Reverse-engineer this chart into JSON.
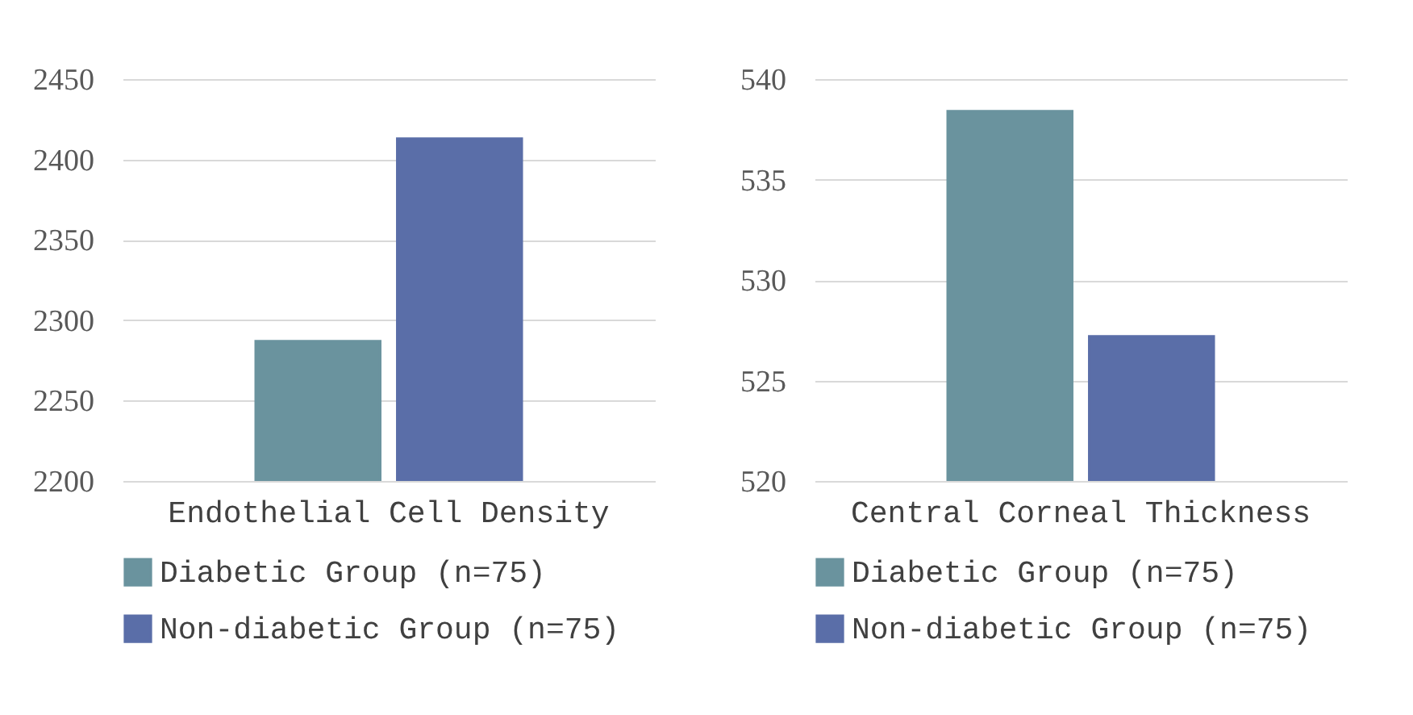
{
  "chart_data": [
    {
      "type": "bar",
      "categories": [
        "Endothelial Cell Density"
      ],
      "series": [
        {
          "name": "Diabetic Group (n=75)",
          "color": "#6a939e",
          "values": [
            2287
          ]
        },
        {
          "name": "Non-diabetic Group (n=75)",
          "color": "#5a6ea8",
          "values": [
            2413
          ]
        }
      ],
      "ylim": [
        2200,
        2450
      ],
      "yticks": [
        2200,
        2250,
        2300,
        2350,
        2400,
        2450
      ],
      "grid": "y",
      "legend": "bottom"
    },
    {
      "type": "bar",
      "categories": [
        "Central Corneal Thickness"
      ],
      "series": [
        {
          "name": "Diabetic Group (n=75)",
          "color": "#6a939e",
          "values": [
            538.4
          ]
        },
        {
          "name": "Non-diabetic Group (n=75)",
          "color": "#5a6ea8",
          "values": [
            527.2
          ]
        }
      ],
      "ylim": [
        520,
        540
      ],
      "yticks": [
        520,
        525,
        530,
        535,
        540
      ],
      "grid": "y",
      "legend": "bottom"
    }
  ]
}
